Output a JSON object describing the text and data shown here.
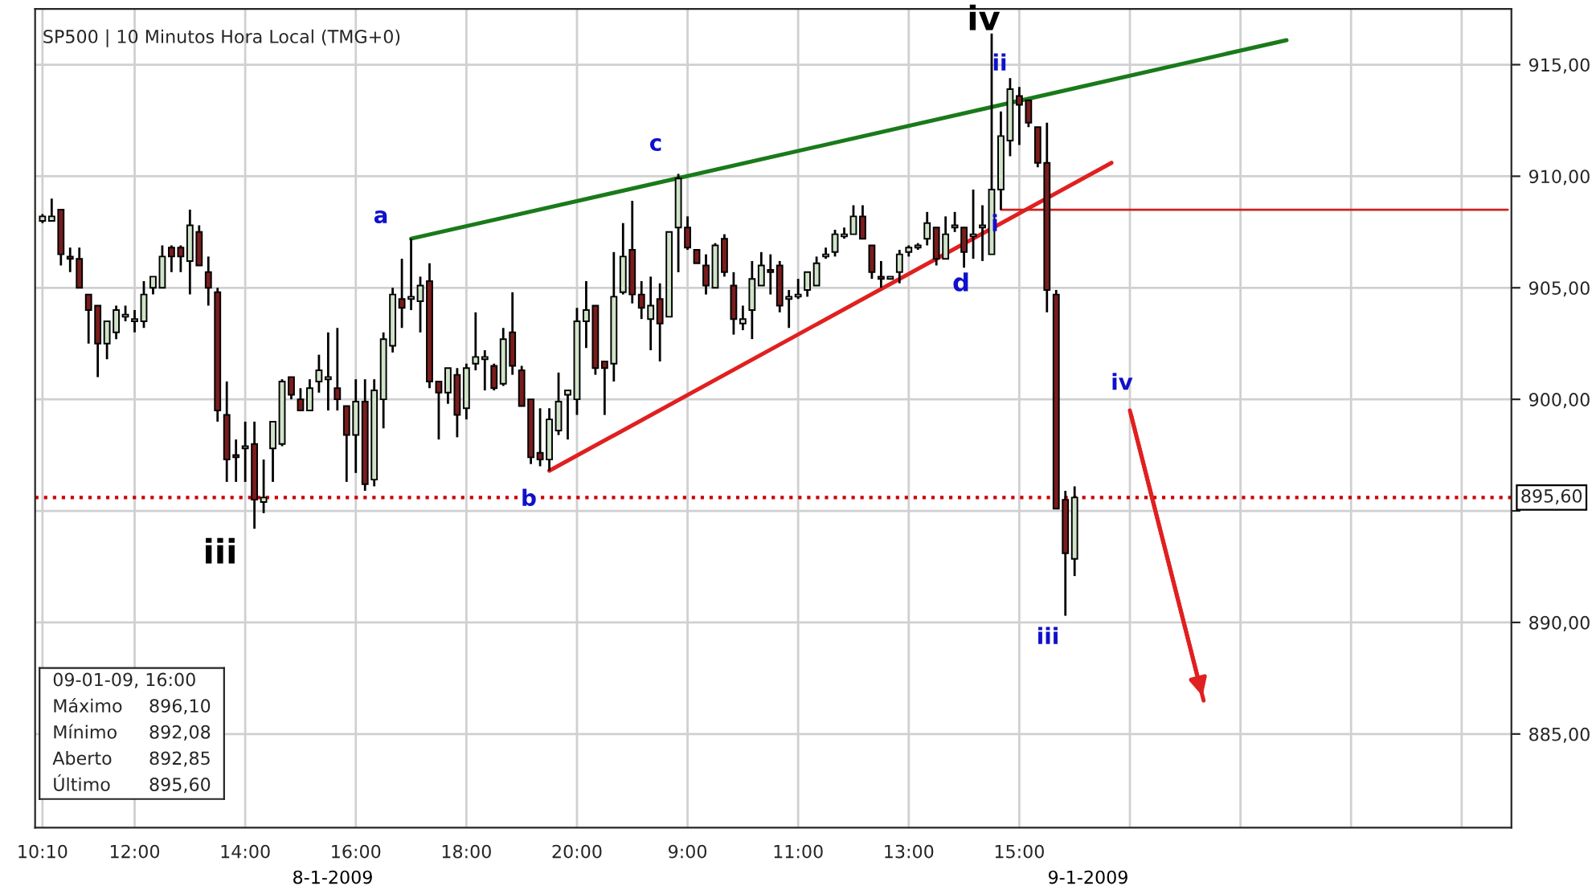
{
  "chart_data": {
    "type": "candlestick",
    "title": "SP500 | 10 Minutos Hora Local (TMG+0)",
    "categories": [
      "10:10",
      null,
      null,
      null,
      null,
      null,
      null,
      null,
      null,
      null,
      "12:00",
      null,
      null,
      null,
      null,
      null,
      null,
      null,
      null,
      null,
      null,
      null,
      "14:00",
      null,
      null,
      null,
      null,
      null,
      null,
      null,
      null,
      null,
      null,
      null,
      "16:00",
      null,
      null,
      null,
      null,
      null,
      null,
      null,
      null,
      null,
      null,
      null,
      "18:00",
      null,
      null,
      null,
      null,
      null,
      null,
      null,
      null,
      null,
      null,
      null,
      "20:00",
      null,
      null,
      null,
      null,
      null,
      null,
      null,
      null,
      null,
      null,
      null,
      "9:00",
      null,
      null,
      null,
      null,
      null,
      null,
      null,
      null,
      null,
      null,
      null,
      "11:00",
      null,
      null,
      null,
      null,
      null,
      null,
      null,
      null,
      null,
      null,
      null,
      "13:00",
      null,
      null,
      null,
      null,
      null,
      null,
      null,
      null,
      null,
      null,
      null,
      "15:00",
      null,
      null,
      null,
      null,
      null,
      null,
      null,
      null,
      null,
      null,
      null,
      null,
      null,
      null,
      null,
      null,
      null,
      null,
      null,
      null,
      null,
      null,
      null,
      null,
      null,
      null,
      null,
      null,
      null,
      null,
      null,
      null,
      null,
      null,
      null,
      null,
      null,
      null,
      null,
      null,
      null,
      null,
      null,
      null,
      null,
      null,
      null,
      null,
      null,
      null,
      null,
      null,
      null
    ],
    "ohlc": [
      [
        908.0,
        908.3,
        907.9,
        908.2
      ],
      [
        908.0,
        909.0,
        908.0,
        908.2
      ],
      [
        908.5,
        908.5,
        906.0,
        906.5
      ],
      [
        906.4,
        906.8,
        905.7,
        906.3
      ],
      [
        906.3,
        906.8,
        905.0,
        905.0
      ],
      [
        904.7,
        904.7,
        902.5,
        904.0
      ],
      [
        904.2,
        904.2,
        901.0,
        902.5
      ],
      [
        902.5,
        903.5,
        901.8,
        903.5
      ],
      [
        903.0,
        904.2,
        902.7,
        904.0
      ],
      [
        903.7,
        904.2,
        903.5,
        903.8
      ],
      [
        903.5,
        904.0,
        903.0,
        903.6
      ],
      [
        903.5,
        905.3,
        903.2,
        904.7
      ],
      [
        905.0,
        905.5,
        904.7,
        905.5
      ],
      [
        905.0,
        906.9,
        905.0,
        906.4
      ],
      [
        906.8,
        906.9,
        905.7,
        906.4
      ],
      [
        906.8,
        906.9,
        905.7,
        906.4
      ],
      [
        906.2,
        908.5,
        904.7,
        907.8
      ],
      [
        907.5,
        907.8,
        906.0,
        906.0
      ],
      [
        905.7,
        906.4,
        904.2,
        905.0
      ],
      [
        904.8,
        905.0,
        899.0,
        899.5
      ],
      [
        899.3,
        900.8,
        896.3,
        897.3
      ],
      [
        897.5,
        898.2,
        896.3,
        897.4
      ],
      [
        897.8,
        899.0,
        896.3,
        897.9
      ],
      [
        898.0,
        899.0,
        894.2,
        895.5
      ],
      [
        895.4,
        897.3,
        894.9,
        895.6
      ],
      [
        897.8,
        899.0,
        896.3,
        899.0
      ],
      [
        898.0,
        900.9,
        897.9,
        900.8
      ],
      [
        901.0,
        901.0,
        900.0,
        900.2
      ],
      [
        900.0,
        900.5,
        899.5,
        899.5
      ],
      [
        899.5,
        900.9,
        899.5,
        900.5
      ],
      [
        900.8,
        902.0,
        900.3,
        901.3
      ],
      [
        900.9,
        903.0,
        899.5,
        901.0
      ],
      [
        900.5,
        903.2,
        899.5,
        900.0
      ],
      [
        899.7,
        899.7,
        896.3,
        898.4
      ],
      [
        898.4,
        900.9,
        896.7,
        899.9
      ],
      [
        899.9,
        900.9,
        895.9,
        896.2
      ],
      [
        896.4,
        900.9,
        896.1,
        900.4
      ],
      [
        900.0,
        903.0,
        898.7,
        902.7
      ],
      [
        902.4,
        905.0,
        902.1,
        904.7
      ],
      [
        904.5,
        906.3,
        903.2,
        904.1
      ],
      [
        904.5,
        907.2,
        904.0,
        904.6
      ],
      [
        904.4,
        905.5,
        903.0,
        905.1
      ],
      [
        905.3,
        906.1,
        900.5,
        900.8
      ],
      [
        900.8,
        900.8,
        898.2,
        900.3
      ],
      [
        900.3,
        901.4,
        899.8,
        901.4
      ],
      [
        901.1,
        901.4,
        898.3,
        899.3
      ],
      [
        899.6,
        901.6,
        899.1,
        901.4
      ],
      [
        901.6,
        903.9,
        901.3,
        901.9
      ],
      [
        901.8,
        902.2,
        900.4,
        901.9
      ],
      [
        901.5,
        901.6,
        900.4,
        900.5
      ],
      [
        900.7,
        903.2,
        900.6,
        902.7
      ],
      [
        903.0,
        904.8,
        901.1,
        901.5
      ],
      [
        901.3,
        901.5,
        899.7,
        899.7
      ],
      [
        900.0,
        900.0,
        897.1,
        897.4
      ],
      [
        897.6,
        899.6,
        897.0,
        897.3
      ],
      [
        897.3,
        899.6,
        896.8,
        899.1
      ],
      [
        898.6,
        901.2,
        898.4,
        899.9
      ],
      [
        900.2,
        900.4,
        898.2,
        900.4
      ],
      [
        900.0,
        904.1,
        899.3,
        903.5
      ],
      [
        903.5,
        905.3,
        902.3,
        904.0
      ],
      [
        904.2,
        904.2,
        901.1,
        901.4
      ],
      [
        901.7,
        901.7,
        899.3,
        901.4
      ],
      [
        901.6,
        906.6,
        900.8,
        904.6
      ],
      [
        904.8,
        907.9,
        904.7,
        906.4
      ],
      [
        906.7,
        908.9,
        904.3,
        904.7
      ],
      [
        904.7,
        905.3,
        903.6,
        904.1
      ],
      [
        903.6,
        905.5,
        902.2,
        904.2
      ],
      [
        904.5,
        905.2,
        901.7,
        903.4
      ],
      [
        903.7,
        907.5,
        903.7,
        907.5
      ],
      [
        907.7,
        910.1,
        905.7,
        909.9
      ],
      [
        907.7,
        908.2,
        906.7,
        906.8
      ],
      [
        906.7,
        906.7,
        906.1,
        906.1
      ],
      [
        906.0,
        906.5,
        904.7,
        905.1
      ],
      [
        905.0,
        907.0,
        905.0,
        906.9
      ],
      [
        907.2,
        907.4,
        905.5,
        905.7
      ],
      [
        905.1,
        905.7,
        902.9,
        903.6
      ],
      [
        903.4,
        904.2,
        903.1,
        903.6
      ],
      [
        904.0,
        906.2,
        902.7,
        905.4
      ],
      [
        905.1,
        906.6,
        905.1,
        906.0
      ],
      [
        905.8,
        906.5,
        904.7,
        905.7
      ],
      [
        906.0,
        906.2,
        903.9,
        904.2
      ],
      [
        904.5,
        904.9,
        903.2,
        904.6
      ],
      [
        904.6,
        905.4,
        904.5,
        904.7
      ],
      [
        904.9,
        905.7,
        904.6,
        905.7
      ],
      [
        905.1,
        906.4,
        905.1,
        906.1
      ],
      [
        906.4,
        906.8,
        906.3,
        906.5
      ],
      [
        906.6,
        907.6,
        906.4,
        907.4
      ],
      [
        907.3,
        907.7,
        907.2,
        907.4
      ],
      [
        907.4,
        908.7,
        907.4,
        908.2
      ],
      [
        908.2,
        908.7,
        907.2,
        907.2
      ],
      [
        906.9,
        906.9,
        905.4,
        905.7
      ],
      [
        905.5,
        906.2,
        905.0,
        905.4
      ],
      [
        905.4,
        905.5,
        905.4,
        905.5
      ],
      [
        905.7,
        906.7,
        905.2,
        906.5
      ],
      [
        906.6,
        906.9,
        906.4,
        906.8
      ],
      [
        906.8,
        907.0,
        906.7,
        906.9
      ],
      [
        907.2,
        908.4,
        906.9,
        907.9
      ],
      [
        907.7,
        907.7,
        906.0,
        906.3
      ],
      [
        906.3,
        908.2,
        906.3,
        907.4
      ],
      [
        907.7,
        908.4,
        907.5,
        907.8
      ],
      [
        907.7,
        907.7,
        905.9,
        906.6
      ],
      [
        907.3,
        909.4,
        906.3,
        907.4
      ],
      [
        907.7,
        908.7,
        906.2,
        907.8
      ],
      [
        906.5,
        916.4,
        906.5,
        909.4
      ],
      [
        909.4,
        912.9,
        908.5,
        911.8
      ],
      [
        911.6,
        914.4,
        910.9,
        913.9
      ],
      [
        913.6,
        914.0,
        911.4,
        913.2
      ],
      [
        913.4,
        913.4,
        912.2,
        912.4
      ],
      [
        912.2,
        912.2,
        910.4,
        910.6
      ],
      [
        910.6,
        912.4,
        903.9,
        904.9
      ],
      [
        904.7,
        904.9,
        895.1,
        895.1
      ],
      [
        895.5,
        895.9,
        890.3,
        893.1
      ],
      [
        892.85,
        896.1,
        892.08,
        895.6
      ],
      null,
      null,
      null,
      null,
      null,
      null,
      null,
      null,
      null,
      null,
      null,
      null,
      null,
      null,
      null,
      null,
      null,
      null,
      null,
      null,
      null,
      null,
      null,
      null,
      null,
      null,
      null,
      null,
      null,
      null,
      null,
      null,
      null,
      null,
      null,
      null,
      null,
      null,
      null,
      null,
      null,
      null,
      null,
      null,
      null,
      null,
      null
    ],
    "series": [
      {
        "type": "line",
        "color": "#1a7a1a",
        "values": [
          null,
          null,
          null,
          null,
          null,
          null,
          null,
          null,
          null,
          null,
          null,
          null,
          null,
          null,
          null,
          null,
          null,
          null,
          null,
          null,
          null,
          null,
          null,
          null,
          null,
          null,
          null,
          null,
          null,
          null,
          null,
          null,
          null,
          null,
          null,
          null,
          null,
          null,
          null,
          null,
          907.2,
          null,
          null,
          null,
          null,
          null,
          null,
          null,
          null,
          null,
          null,
          null,
          null,
          null,
          null,
          null,
          null,
          null,
          null,
          null,
          null,
          null,
          null,
          null,
          null,
          null,
          null,
          null,
          null,
          null,
          null,
          null,
          null,
          null,
          null,
          null,
          null,
          null,
          null,
          null,
          null,
          null,
          null,
          null,
          null,
          null,
          null,
          null,
          null,
          null,
          null,
          null,
          null,
          null,
          null,
          null,
          null,
          null,
          null,
          null,
          null,
          null,
          null,
          null,
          null,
          null,
          null,
          null,
          null,
          null,
          null,
          null,
          null,
          null,
          null,
          null,
          null,
          null,
          null,
          null,
          null,
          null,
          null,
          null,
          null,
          null,
          null,
          null,
          null,
          null,
          null,
          null,
          null,
          null,
          null,
          916.1,
          null,
          null,
          null,
          null,
          null,
          null,
          null,
          null,
          null,
          null,
          null,
          null,
          null,
          null,
          null,
          null,
          null,
          null,
          null,
          null,
          null,
          null,
          null,
          null
        ]
      },
      {
        "type": "line",
        "color": "#e02020",
        "values": [
          null,
          null,
          null,
          null,
          null,
          null,
          null,
          null,
          null,
          null,
          null,
          null,
          null,
          null,
          null,
          null,
          null,
          null,
          null,
          null,
          null,
          null,
          null,
          null,
          null,
          null,
          null,
          null,
          null,
          null,
          null,
          null,
          null,
          null,
          null,
          null,
          null,
          null,
          null,
          null,
          null,
          null,
          null,
          null,
          null,
          null,
          null,
          null,
          null,
          null,
          null,
          null,
          null,
          null,
          null,
          896.8,
          null,
          null,
          null,
          null,
          null,
          null,
          null,
          null,
          null,
          null,
          null,
          null,
          null,
          null,
          null,
          null,
          null,
          null,
          null,
          null,
          null,
          null,
          null,
          null,
          null,
          null,
          null,
          null,
          null,
          null,
          null,
          null,
          null,
          null,
          null,
          null,
          null,
          null,
          null,
          null,
          null,
          null,
          null,
          null,
          null,
          null,
          null,
          null,
          null,
          null,
          null,
          null,
          null,
          null,
          null,
          null,
          null,
          null,
          null,
          null,
          910.6,
          null,
          null,
          null,
          null,
          null,
          null,
          null,
          null,
          null,
          null,
          null,
          null,
          null,
          null,
          null,
          null,
          null,
          null,
          null,
          null,
          null,
          null,
          null,
          null,
          null,
          null,
          null,
          null,
          null,
          null,
          null,
          null,
          null,
          null,
          null,
          null,
          null,
          null,
          null,
          null,
          null,
          null,
          null
        ]
      },
      {
        "type": "line",
        "color": "#cc2222",
        "values": [
          null,
          null,
          null,
          null,
          null,
          null,
          null,
          null,
          null,
          null,
          null,
          null,
          null,
          null,
          null,
          null,
          null,
          null,
          null,
          null,
          null,
          null,
          null,
          null,
          null,
          null,
          null,
          null,
          null,
          null,
          null,
          null,
          null,
          null,
          null,
          null,
          null,
          null,
          null,
          null,
          null,
          null,
          null,
          null,
          null,
          null,
          null,
          null,
          null,
          null,
          null,
          null,
          null,
          null,
          null,
          null,
          null,
          null,
          null,
          null,
          null,
          null,
          null,
          null,
          null,
          null,
          null,
          null,
          null,
          null,
          null,
          null,
          null,
          null,
          null,
          null,
          null,
          null,
          null,
          null,
          null,
          null,
          null,
          null,
          null,
          null,
          null,
          null,
          null,
          null,
          null,
          null,
          null,
          null,
          null,
          null,
          null,
          null,
          null,
          null,
          null,
          null,
          null,
          null,
          908.5,
          null,
          null,
          null,
          null,
          null,
          null,
          null,
          null,
          null,
          null,
          null,
          null,
          null,
          null,
          null,
          null,
          null,
          null,
          null,
          null,
          null,
          null,
          null,
          null,
          null,
          null,
          null,
          null,
          null,
          null,
          null,
          null,
          null,
          null,
          null,
          null,
          null,
          null,
          null,
          null,
          null,
          null,
          null,
          null,
          null,
          null,
          null,
          null,
          null,
          null,
          null,
          null,
          null,
          null,
          908.5
        ]
      },
      {
        "type": "line",
        "color": "#e02020",
        "values": [
          null,
          null,
          null,
          null,
          null,
          null,
          null,
          null,
          null,
          null,
          null,
          null,
          null,
          null,
          null,
          null,
          null,
          null,
          null,
          null,
          null,
          null,
          null,
          null,
          null,
          null,
          null,
          null,
          null,
          null,
          null,
          null,
          null,
          null,
          null,
          null,
          null,
          null,
          null,
          null,
          null,
          null,
          null,
          null,
          null,
          null,
          null,
          null,
          null,
          null,
          null,
          null,
          null,
          null,
          null,
          null,
          null,
          null,
          null,
          null,
          null,
          null,
          null,
          null,
          null,
          null,
          null,
          null,
          null,
          null,
          null,
          null,
          null,
          null,
          null,
          null,
          null,
          null,
          null,
          null,
          null,
          null,
          null,
          null,
          null,
          null,
          null,
          null,
          null,
          null,
          null,
          null,
          null,
          null,
          null,
          null,
          null,
          null,
          null,
          null,
          null,
          null,
          null,
          null,
          null,
          null,
          null,
          null,
          null,
          null,
          null,
          null,
          null,
          null,
          null,
          null,
          null,
          null,
          899.5,
          null,
          null,
          null,
          null,
          null,
          null,
          null,
          886.5,
          null,
          null,
          null,
          null,
          null,
          null,
          null,
          null,
          null,
          null,
          null,
          null,
          null,
          null,
          null,
          null,
          null,
          null,
          null,
          null,
          null,
          null,
          null,
          null,
          null,
          null,
          null,
          null,
          null,
          null,
          null,
          null,
          null
        ]
      }
    ],
    "ref_lines": [
      {
        "axis": "y",
        "value": 895.6,
        "label": "895,60",
        "color": "#cc0000",
        "line_style": "dotted"
      }
    ],
    "annotations": [
      "iii",
      "a",
      "b",
      "c",
      "d",
      "iv",
      "i",
      "ii",
      "iii",
      {
        "text": "iv",
        "y": 899.5
      },
      "8-1-2009",
      "9-1-2009",
      "09-01-09, 16:00",
      "Máximo",
      "896,10",
      "Mínimo",
      "892,08",
      "Aberto",
      "892,85",
      "Último",
      "895,60"
    ],
    "ylim": [
      880.8,
      917.5
    ],
    "yticks": [
      {
        "value": 885,
        "label": "885,00"
      },
      {
        "value": 890,
        "label": "890,00"
      },
      {
        "value": 895,
        "label": null
      },
      {
        "value": 900,
        "label": "900,00"
      },
      {
        "value": 905,
        "label": "905,00"
      },
      {
        "value": 910,
        "label": "910,00"
      },
      {
        "value": 915,
        "label": "915,00"
      }
    ],
    "grid": true
  }
}
